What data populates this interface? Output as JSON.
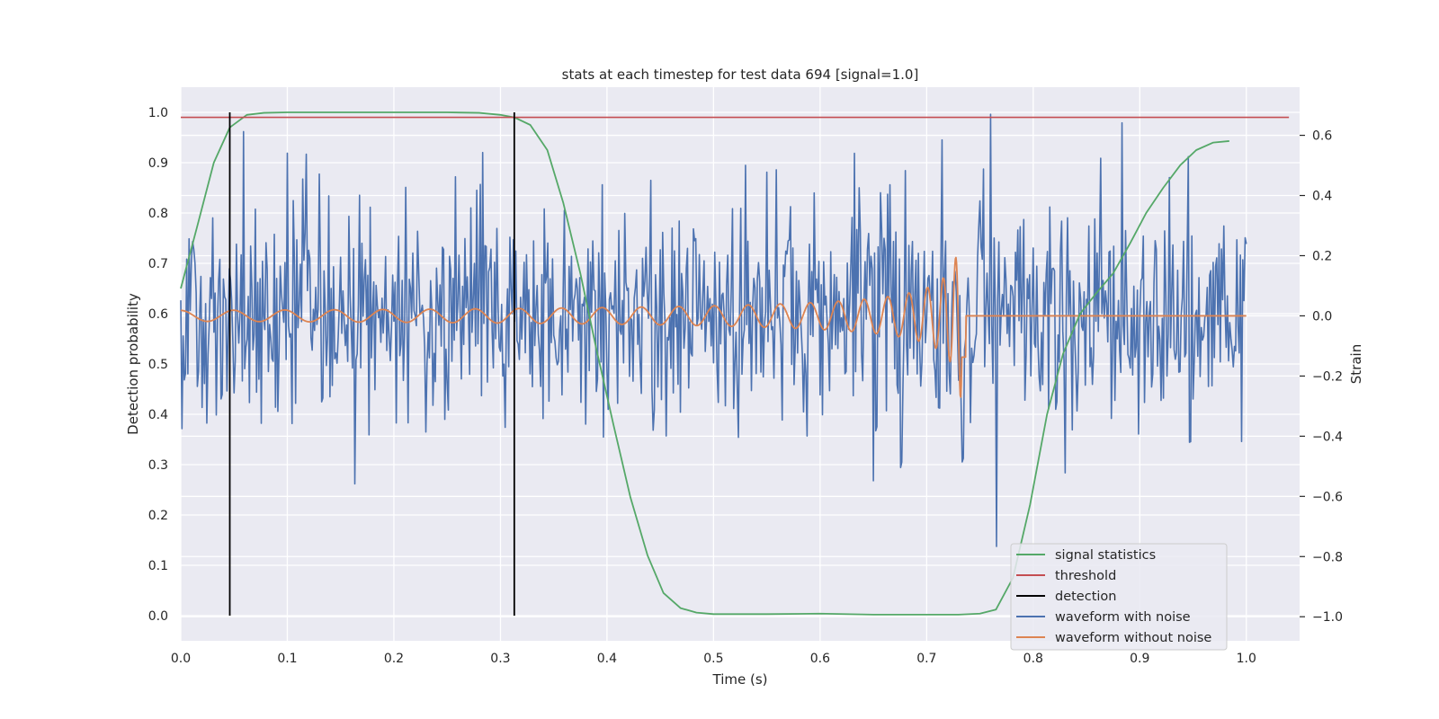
{
  "chart_data": {
    "type": "line",
    "title": "stats at each timestep for test data 694 [signal=1.0]",
    "xlabel": "Time (s)",
    "ylabel": "Detection probability",
    "y2label": "Strain",
    "xlim": [
      0.0,
      1.05
    ],
    "ylim": [
      -0.05,
      1.05
    ],
    "y2lim": [
      -1.08,
      0.76
    ],
    "xticks": [
      "0.0",
      "0.1",
      "0.2",
      "0.3",
      "0.4",
      "0.5",
      "0.6",
      "0.7",
      "0.8",
      "0.9",
      "1.0"
    ],
    "yticks": [
      "0.0",
      "0.1",
      "0.2",
      "0.3",
      "0.4",
      "0.5",
      "0.6",
      "0.7",
      "0.8",
      "0.9",
      "1.0"
    ],
    "y2ticks": [
      "−1.0",
      "−0.8",
      "−0.6",
      "−0.4",
      "−0.2",
      "0.0",
      "0.2",
      "0.4",
      "0.6"
    ],
    "grid": true,
    "legend_position": "bottom-right",
    "colors": {
      "signal_statistics": "#55a868",
      "threshold": "#c44e52",
      "detection": "#000000",
      "waveform_with_noise": "#4c72b0",
      "waveform_without_noise": "#dd8452",
      "plot_background": "#eaeaf2",
      "grid": "#ffffff"
    },
    "legend": [
      "signal statistics",
      "threshold",
      "detection",
      "waveform with noise",
      "waveform without noise"
    ],
    "threshold": 0.99,
    "threshold_x": [
      0.0,
      1.04
    ],
    "detections": [
      0.046,
      0.313
    ],
    "signal_statistics": {
      "x": [
        0.0,
        0.015,
        0.031,
        0.046,
        0.062,
        0.078,
        0.1,
        0.15,
        0.2,
        0.25,
        0.28,
        0.3,
        0.313,
        0.328,
        0.344,
        0.359,
        0.375,
        0.39,
        0.406,
        0.422,
        0.438,
        0.453,
        0.469,
        0.484,
        0.5,
        0.55,
        0.6,
        0.65,
        0.7,
        0.73,
        0.75,
        0.765,
        0.781,
        0.797,
        0.813,
        0.828,
        0.844,
        0.859,
        0.875,
        0.891,
        0.906,
        0.922,
        0.938,
        0.953,
        0.969,
        0.984
      ],
      "y": [
        0.65,
        0.77,
        0.9,
        0.97,
        0.995,
        0.999,
        1.0,
        1.0,
        1.0,
        1.0,
        0.999,
        0.995,
        0.99,
        0.975,
        0.925,
        0.82,
        0.68,
        0.53,
        0.38,
        0.235,
        0.12,
        0.045,
        0.015,
        0.006,
        0.003,
        0.003,
        0.004,
        0.002,
        0.002,
        0.002,
        0.004,
        0.012,
        0.075,
        0.22,
        0.4,
        0.52,
        0.6,
        0.64,
        0.68,
        0.74,
        0.8,
        0.85,
        0.895,
        0.925,
        0.94,
        0.943
      ]
    },
    "waveform_with_noise": {
      "x_range": [
        0.0,
        1.0
      ],
      "n_points": 900,
      "y_range": [
        -0.82,
        0.67
      ],
      "description_note": ""
    },
    "waveform_without_noise": {
      "x_range": [
        0.0,
        1.0
      ],
      "merger_time": 0.737
    }
  }
}
